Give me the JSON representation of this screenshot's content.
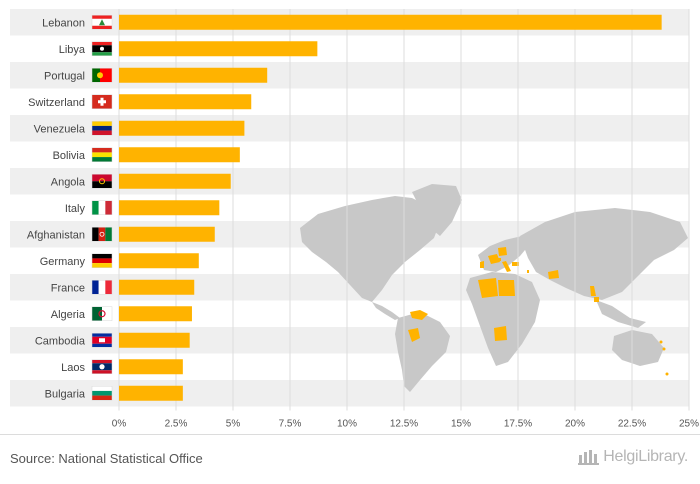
{
  "chart_data": {
    "type": "bar",
    "orientation": "horizontal",
    "categories": [
      "Lebanon",
      "Libya",
      "Portugal",
      "Switzerland",
      "Venezuela",
      "Bolivia",
      "Angola",
      "Italy",
      "Afghanistan",
      "Germany",
      "France",
      "Algeria",
      "Cambodia",
      "Laos",
      "Bulgaria"
    ],
    "values": [
      23.8,
      8.7,
      6.5,
      5.8,
      5.5,
      5.3,
      4.9,
      4.4,
      4.2,
      3.5,
      3.3,
      3.2,
      3.1,
      2.8,
      2.8
    ],
    "xlim": [
      0,
      25
    ],
    "x_ticks": [
      "0%",
      "2.5%",
      "5%",
      "7.5%",
      "10%",
      "12.5%",
      "15%",
      "17.5%",
      "20%",
      "22.5%",
      "25%"
    ],
    "bar_color": "#FFB300",
    "grid": true,
    "row_stripes": true
  },
  "flags": {
    "Lebanon": [
      "#e22",
      "#fff",
      "#e22"
    ],
    "Libya": [
      "#e22",
      "#000",
      "#239e46"
    ],
    "Portugal": [
      "#006600",
      "#ff0000"
    ],
    "Switzerland": [
      "#d52b1e"
    ],
    "Venezuela": [
      "#ffcc00",
      "#00247d",
      "#cf142b"
    ],
    "Bolivia": [
      "#d52b1e",
      "#f9e300",
      "#007934"
    ],
    "Angola": [
      "#cc092f",
      "#000000"
    ],
    "Italy": [
      "#009246",
      "#ffffff",
      "#ce2b37"
    ],
    "Afghanistan": [
      "#000000",
      "#d32011",
      "#007a36"
    ],
    "Germany": [
      "#000000",
      "#dd0000",
      "#ffce00"
    ],
    "France": [
      "#002395",
      "#ffffff",
      "#ed2939"
    ],
    "Algeria": [
      "#006233",
      "#ffffff"
    ],
    "Cambodia": [
      "#032ea1",
      "#e00025",
      "#032ea1"
    ],
    "Laos": [
      "#ce1126",
      "#002868",
      "#ce1126"
    ],
    "Bulgaria": [
      "#ffffff",
      "#00966e",
      "#d62612"
    ]
  },
  "footer": {
    "source": "Source: National Statistical Office",
    "brand": "HelgiLibrary."
  },
  "colors": {
    "map_land": "#c8c8c8",
    "map_highlight": "#FFB300",
    "stripe": "#efefef",
    "grid": "#dddddd"
  }
}
